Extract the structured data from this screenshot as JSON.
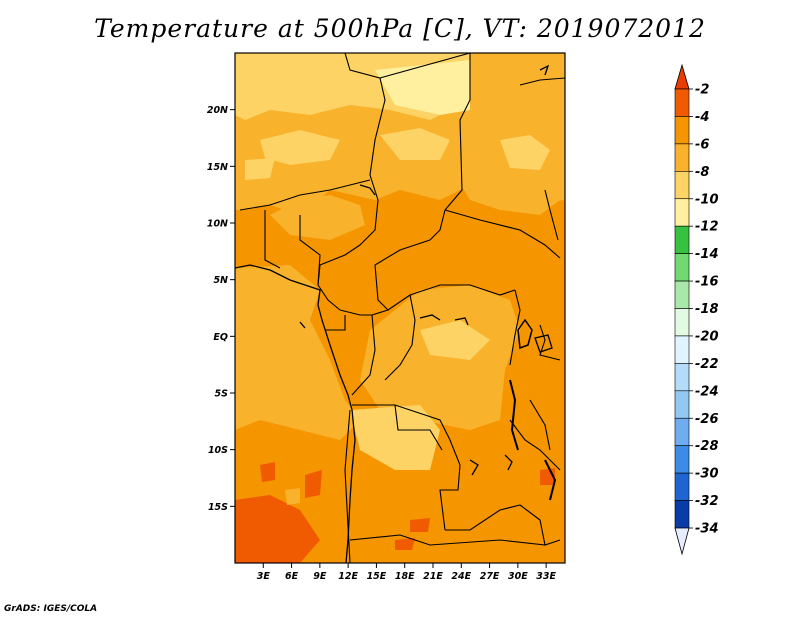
{
  "title": "Temperature at 500hPa [C], VT: 2019072012",
  "credit": "GrADS: IGES/COLA",
  "map": {
    "lon_range": [
      0,
      35
    ],
    "lat_range": [
      -20,
      25
    ],
    "lat_labels": [
      {
        "lat": 20,
        "label": "20N"
      },
      {
        "lat": 15,
        "label": "15N"
      },
      {
        "lat": 10,
        "label": "10N"
      },
      {
        "lat": 5,
        "label": "5N"
      },
      {
        "lat": 0,
        "label": "EQ"
      },
      {
        "lat": -5,
        "label": "5S"
      },
      {
        "lat": -10,
        "label": "10S"
      },
      {
        "lat": -15,
        "label": "15S"
      }
    ],
    "lon_labels": [
      {
        "lon": 3,
        "label": "3E"
      },
      {
        "lon": 6,
        "label": "6E"
      },
      {
        "lon": 9,
        "label": "9E"
      },
      {
        "lon": 12,
        "label": "12E"
      },
      {
        "lon": 15,
        "label": "15E"
      },
      {
        "lon": 18,
        "label": "18E"
      },
      {
        "lon": 21,
        "label": "21E"
      },
      {
        "lon": 24,
        "label": "24E"
      },
      {
        "lon": 27,
        "label": "27E"
      },
      {
        "lon": 30,
        "label": "30E"
      },
      {
        "lon": 33,
        "label": "33E"
      }
    ]
  },
  "colorbar": {
    "labels": [
      "-2",
      "-4",
      "-6",
      "-8",
      "-10",
      "-12",
      "-14",
      "-16",
      "-18",
      "-20",
      "-22",
      "-24",
      "-26",
      "-28",
      "-30",
      "-32",
      "-34"
    ],
    "colors": [
      "#f05a00",
      "#f59500",
      "#f8b22c",
      "#fcd364",
      "#fff0a0",
      "#38c040",
      "#72d872",
      "#a8e8a8",
      "#e2fae2",
      "#e0f4ff",
      "#b4dcf8",
      "#92c8f4",
      "#6eaef0",
      "#3c8ce6",
      "#1e64d2",
      "#0a3ca8",
      "#08147a"
    ],
    "top_arrow_color": "#e83c00",
    "bottom_arrow_color": "#e8ecff"
  }
}
